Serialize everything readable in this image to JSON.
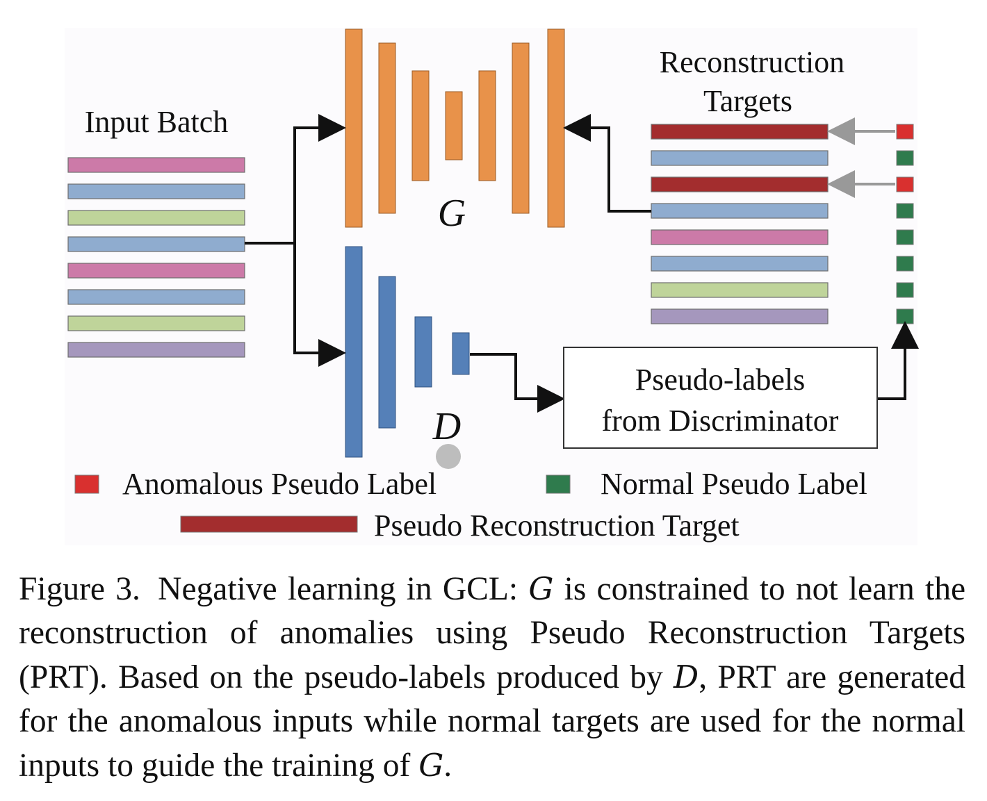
{
  "figure": {
    "input_batch_label": "Input Batch",
    "reconstruction_targets_label": [
      "Reconstruction",
      "Targets"
    ],
    "generator_symbol": "G",
    "discriminator_symbol": "D",
    "pseudo_labels_box": [
      "Pseudo-labels",
      "from Discriminator"
    ],
    "input_batch_colors": [
      "#cc7aa8",
      "#8faccf",
      "#bfd49a",
      "#8faccf",
      "#cc7aa8",
      "#8faccf",
      "#bfd49a",
      "#a597bd"
    ],
    "reconstruction_target_colors": [
      "#a32d2e",
      "#8faccf",
      "#a32d2e",
      "#8faccf",
      "#cc7aa8",
      "#8faccf",
      "#bfd49a",
      "#a597bd"
    ],
    "pseudo_labels": [
      "anomalous",
      "normal",
      "anomalous",
      "normal",
      "normal",
      "normal",
      "normal",
      "normal"
    ],
    "colors": {
      "generator": "#e8924a",
      "discriminator": "#5580b8",
      "anomalous": "#d9302f",
      "normal": "#2f7b4d",
      "prt": "#a32d2e",
      "grey_arrow": "#999999"
    },
    "legend": {
      "anomalous": "Anomalous Pseudo Label",
      "normal": "Normal Pseudo Label",
      "prt": "Pseudo Reconstruction Target"
    }
  },
  "caption": {
    "label": "Figure 3.",
    "text_1": "Negative learning in GCL:",
    "g_symbol": "G",
    "text_2": "is constrained to not learn the reconstruction of anomalies using Pseudo Reconstruction Tar­gets (PRT). Based on the pseudo-labels produced by",
    "d_symbol": "D",
    "text_3": ", PRT are generated for the anomalous inputs while normal targets are used for the normal inputs to guide the training of",
    "g_symbol_2": "G",
    "text_4": "."
  }
}
